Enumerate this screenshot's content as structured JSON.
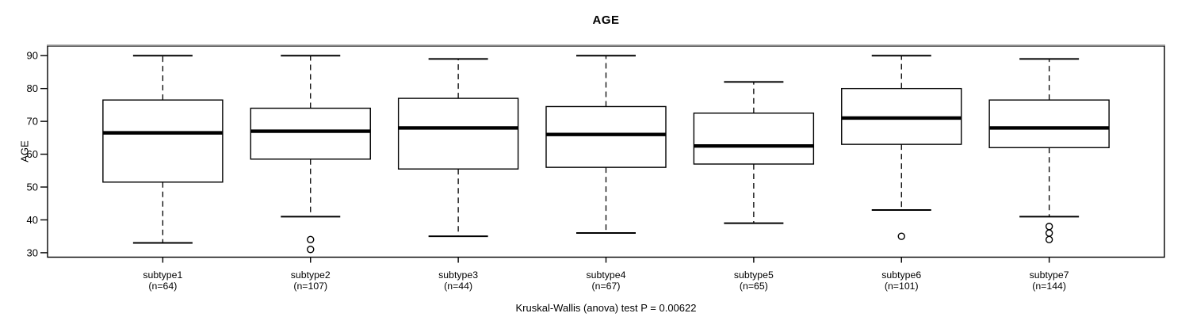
{
  "chart_data": {
    "type": "boxplot",
    "title": "AGE",
    "ylabel": "AGE",
    "xlabel": "",
    "caption": "Kruskal-Wallis (anova) test P = 0.00622",
    "y_ticks": [
      30,
      40,
      50,
      60,
      70,
      80,
      90
    ],
    "ylim": [
      28.65,
      92.95
    ],
    "grid": false,
    "legend": "none",
    "categories": [
      "subtype1",
      "subtype2",
      "subtype3",
      "subtype4",
      "subtype5",
      "subtype6",
      "subtype7"
    ],
    "groups": [
      {
        "label": "subtype1",
        "n_label": "(n=64)",
        "n": 64,
        "whisker_low": 33,
        "q1": 51.5,
        "median": 66.5,
        "q3": 76.5,
        "whisker_high": 90,
        "outliers": []
      },
      {
        "label": "subtype2",
        "n_label": "(n=107)",
        "n": 107,
        "whisker_low": 41,
        "q1": 58.5,
        "median": 67,
        "q3": 74,
        "whisker_high": 90,
        "outliers": [
          34,
          31
        ]
      },
      {
        "label": "subtype3",
        "n_label": "(n=44)",
        "n": 44,
        "whisker_low": 35,
        "q1": 55.5,
        "median": 68,
        "q3": 77,
        "whisker_high": 89,
        "outliers": []
      },
      {
        "label": "subtype4",
        "n_label": "(n=67)",
        "n": 67,
        "whisker_low": 36,
        "q1": 56,
        "median": 66,
        "q3": 74.5,
        "whisker_high": 90,
        "outliers": []
      },
      {
        "label": "subtype5",
        "n_label": "(n=65)",
        "n": 65,
        "whisker_low": 39,
        "q1": 57,
        "median": 62.5,
        "q3": 72.5,
        "whisker_high": 82,
        "outliers": []
      },
      {
        "label": "subtype6",
        "n_label": "(n=101)",
        "n": 101,
        "whisker_low": 43,
        "q1": 63,
        "median": 71,
        "q3": 80,
        "whisker_high": 90,
        "outliers": [
          35
        ]
      },
      {
        "label": "subtype7",
        "n_label": "(n=144)",
        "n": 144,
        "whisker_low": 41,
        "q1": 62,
        "median": 68,
        "q3": 76.5,
        "whisker_high": 89,
        "outliers": [
          38,
          36,
          34
        ]
      }
    ],
    "colors": {
      "line": "#000000",
      "box_fill": "#ffffff",
      "border_shadow": "#8c8c8c",
      "background": "#ffffff"
    }
  }
}
